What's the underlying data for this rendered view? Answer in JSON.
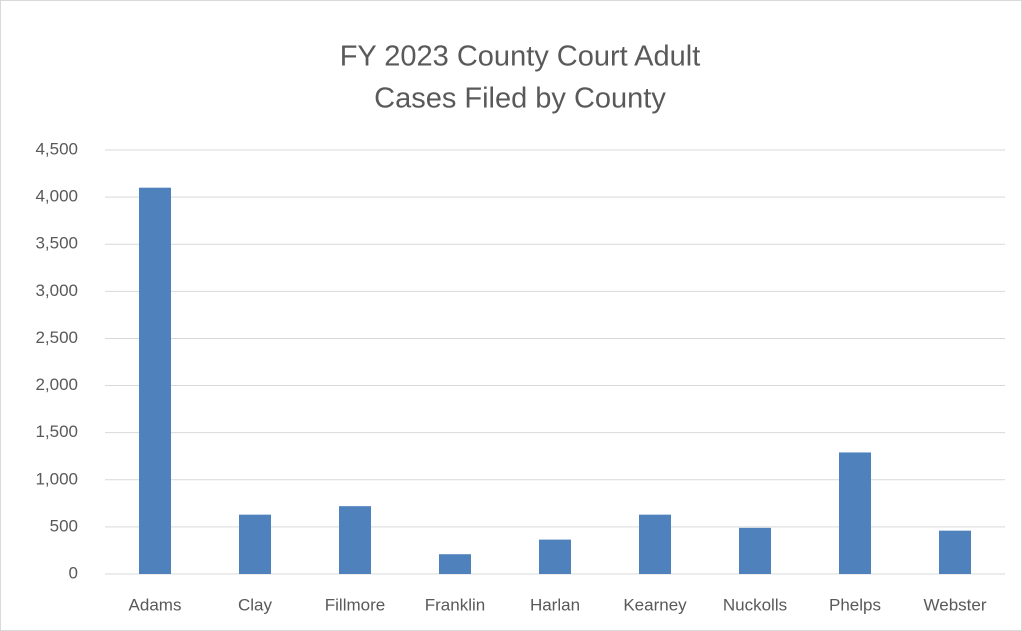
{
  "chart_data": {
    "type": "bar",
    "title": [
      "FY 2023 County Court Adult",
      "Cases Filed by County"
    ],
    "categories": [
      "Adams",
      "Clay",
      "Fillmore",
      "Franklin",
      "Harlan",
      "Kearney",
      "Nuckolls",
      "Phelps",
      "Webster"
    ],
    "values": [
      4100,
      630,
      720,
      210,
      365,
      630,
      490,
      1290,
      460
    ],
    "color": "#4f81bd",
    "ylim": [
      0,
      4500
    ],
    "yticks": [
      0,
      500,
      {
        "value": 1000,
        "label": "1,000"
      },
      {
        "value": 1500,
        "label": "1,500"
      },
      {
        "value": 2000,
        "label": "2,000"
      },
      {
        "value": 2500,
        "label": "2,500"
      },
      {
        "value": 3000,
        "label": "3,000"
      },
      {
        "value": 3500,
        "label": "3,500"
      },
      {
        "value": 4000,
        "label": "4,000"
      },
      {
        "value": 4500,
        "label": "4,500"
      }
    ],
    "grid": true
  }
}
